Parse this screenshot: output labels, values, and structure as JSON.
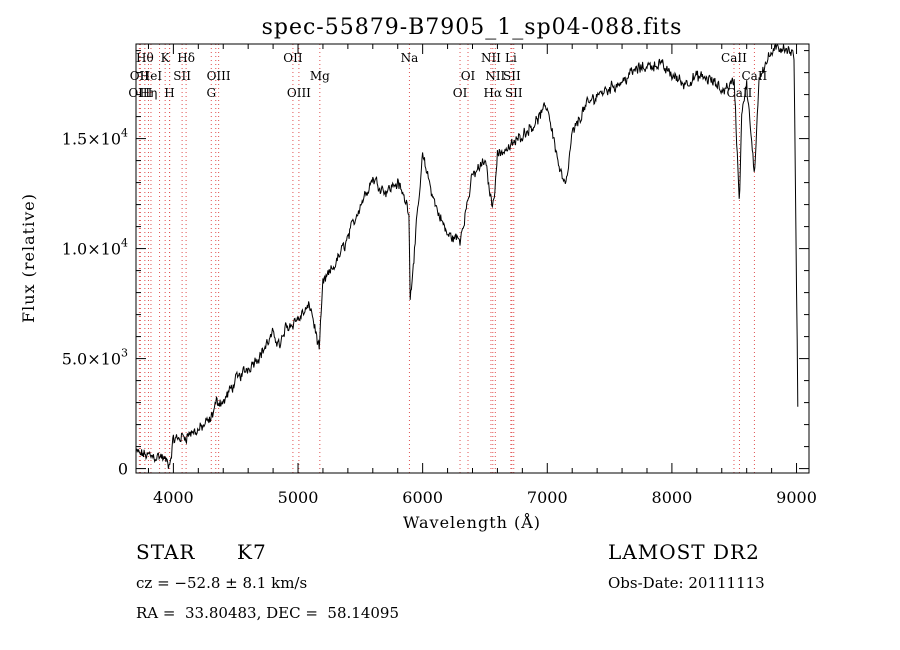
{
  "chart_data": {
    "type": "line",
    "title": "spec-55879-B7905_1_sp04-088.fits",
    "xlabel": "Wavelength (Å)",
    "ylabel": "Flux (relative)",
    "xlim": [
      3700,
      9100
    ],
    "ylim": [
      -200,
      19300
    ],
    "grid": false,
    "x_ticks": [
      {
        "value": 4000,
        "label": "4000"
      },
      {
        "value": 5000,
        "label": "5000"
      },
      {
        "value": 6000,
        "label": "6000"
      },
      {
        "value": 7000,
        "label": "7000"
      },
      {
        "value": 8000,
        "label": "8000"
      },
      {
        "value": 9000,
        "label": "9000"
      }
    ],
    "y_ticks": [
      {
        "value": 0,
        "mant": "0",
        "exp": ""
      },
      {
        "value": 5000,
        "mant": "5.0×10",
        "exp": "3"
      },
      {
        "value": 10000,
        "mant": "1.0×10",
        "exp": "4"
      },
      {
        "value": 15000,
        "mant": "1.5×10",
        "exp": "4"
      }
    ],
    "spectrum": {
      "x": [
        3700,
        3800,
        3900,
        3970,
        4000,
        4100,
        4200,
        4300,
        4350,
        4400,
        4500,
        4600,
        4700,
        4800,
        4860,
        4900,
        5000,
        5100,
        5170,
        5200,
        5300,
        5400,
        5500,
        5600,
        5700,
        5800,
        5890,
        5900,
        6000,
        6100,
        6200,
        6300,
        6400,
        6500,
        6563,
        6600,
        6700,
        6800,
        6900,
        7000,
        7100,
        7150,
        7200,
        7300,
        7400,
        7500,
        7600,
        7700,
        7800,
        7900,
        8000,
        8100,
        8200,
        8300,
        8400,
        8500,
        8542,
        8560,
        8600,
        8662,
        8700,
        8800,
        8900,
        8980,
        9000,
        9010
      ],
      "y": [
        700,
        600,
        550,
        150,
        1300,
        1500,
        1750,
        2200,
        3100,
        3000,
        4000,
        4600,
        5200,
        6100,
        5600,
        6400,
        6800,
        7400,
        5400,
        8400,
        9300,
        10500,
        12000,
        13200,
        12600,
        13000,
        11800,
        7700,
        14200,
        12000,
        10600,
        10400,
        13300,
        14000,
        11800,
        14300,
        14600,
        15200,
        15700,
        16500,
        13600,
        12800,
        15200,
        16400,
        17000,
        17300,
        17600,
        18100,
        18300,
        18400,
        17900,
        17500,
        17800,
        17700,
        17200,
        17600,
        12000,
        16300,
        17400,
        13300,
        17900,
        18900,
        19200,
        18700,
        8000,
        3000
      ],
      "wiggle": 280
    },
    "lines": [
      {
        "x": 3727,
        "label": "OII",
        "row": 1
      },
      {
        "x": 3735,
        "label": "OIII",
        "row": 2
      },
      {
        "x": 3771,
        "label": "Hθ",
        "row": 0
      },
      {
        "x": 3800,
        "label": "Hη",
        "row": 2
      },
      {
        "x": 3820,
        "label": "HeI",
        "row": 1
      },
      {
        "x": 3889,
        "label": "",
        "row": 1
      },
      {
        "x": 3934,
        "label": "K",
        "row": 0
      },
      {
        "x": 3969,
        "label": "H",
        "row": 2
      },
      {
        "x": 3970,
        "label": "",
        "row": 2
      },
      {
        "x": 4070,
        "label": "SII",
        "row": 1
      },
      {
        "x": 4102,
        "label": "Hδ",
        "row": 0
      },
      {
        "x": 4304,
        "label": "G",
        "row": 2
      },
      {
        "x": 4340,
        "label": "",
        "row": 2
      },
      {
        "x": 4363,
        "label": "OIII",
        "row": 1
      },
      {
        "x": 4959,
        "label": "OII",
        "row": 0
      },
      {
        "x": 5007,
        "label": "OIII",
        "row": 2
      },
      {
        "x": 5175,
        "label": "Mg",
        "row": 1
      },
      {
        "x": 5894,
        "label": "Na",
        "row": 0
      },
      {
        "x": 6300,
        "label": "OI",
        "row": 2
      },
      {
        "x": 6364,
        "label": "OI",
        "row": 1
      },
      {
        "x": 6548,
        "label": "NII",
        "row": 0
      },
      {
        "x": 6563,
        "label": "Hα",
        "row": 2
      },
      {
        "x": 6583,
        "label": "NII",
        "row": 1
      },
      {
        "x": 6708,
        "label": "Li",
        "row": 0
      },
      {
        "x": 6716,
        "label": "SII",
        "row": 1
      },
      {
        "x": 6731,
        "label": "SII",
        "row": 2
      },
      {
        "x": 8498,
        "label": "CaII",
        "row": 0
      },
      {
        "x": 8542,
        "label": "CaII",
        "row": 2
      },
      {
        "x": 8662,
        "label": "CaII",
        "row": 1
      }
    ]
  },
  "info": {
    "object_class": "STAR",
    "subclass": "K7",
    "survey": "LAMOST DR2",
    "cz": "cz = −52.8 ± 8.1 km/s",
    "obs_date": "Obs-Date: 20111113",
    "coords": "RA =  33.80483, DEC =  58.14095"
  }
}
